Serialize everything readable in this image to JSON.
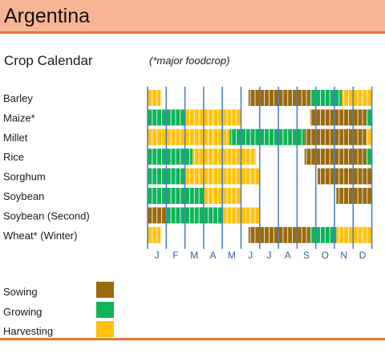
{
  "header": {
    "title": "Argentina"
  },
  "subtitle": "Crop Calendar",
  "note": "(*major foodcrop)",
  "colors": {
    "sowing": "#9a6a0f",
    "growing": "#0fb35a",
    "harvesting": "#ffc20e",
    "gridline": "#4f81bd",
    "accent": "#e8753a",
    "header_bg": "#f7b595"
  },
  "legend": [
    {
      "label": "Sowing",
      "stage": "sowing"
    },
    {
      "label": "Growing",
      "stage": "growing"
    },
    {
      "label": "Harvesting",
      "stage": "harvesting"
    }
  ],
  "chart_data": {
    "type": "table",
    "title": "Crop Calendar",
    "months": [
      "J",
      "F",
      "M",
      "A",
      "M",
      "J",
      "J",
      "A",
      "S",
      "O",
      "N",
      "D"
    ],
    "unit": "month (0 = start of January, 12 = end of December)",
    "crops": [
      {
        "name": "Barley",
        "segments": [
          {
            "stage": "harvesting",
            "start": 0.0,
            "end": 0.7
          },
          {
            "stage": "sowing",
            "start": 5.4,
            "end": 8.7
          },
          {
            "stage": "growing",
            "start": 8.7,
            "end": 10.4
          },
          {
            "stage": "harvesting",
            "start": 10.4,
            "end": 12.0
          }
        ]
      },
      {
        "name": "Maize*",
        "segments": [
          {
            "stage": "growing",
            "start": 0.0,
            "end": 2.0
          },
          {
            "stage": "harvesting",
            "start": 2.0,
            "end": 5.0
          },
          {
            "stage": "sowing",
            "start": 8.7,
            "end": 11.7
          },
          {
            "stage": "growing",
            "start": 11.7,
            "end": 12.0
          }
        ]
      },
      {
        "name": "Millet",
        "segments": [
          {
            "stage": "harvesting",
            "start": 0.0,
            "end": 4.4
          },
          {
            "stage": "growing",
            "start": 4.4,
            "end": 8.4
          },
          {
            "stage": "sowing",
            "start": 8.4,
            "end": 11.7
          },
          {
            "stage": "harvesting",
            "start": 11.7,
            "end": 12.0
          }
        ]
      },
      {
        "name": "Rice",
        "segments": [
          {
            "stage": "growing",
            "start": 0.0,
            "end": 2.4
          },
          {
            "stage": "harvesting",
            "start": 2.4,
            "end": 5.8
          },
          {
            "stage": "sowing",
            "start": 8.4,
            "end": 11.7
          },
          {
            "stage": "growing",
            "start": 11.7,
            "end": 12.0
          }
        ]
      },
      {
        "name": "Sorghum",
        "segments": [
          {
            "stage": "growing",
            "start": 0.0,
            "end": 2.0
          },
          {
            "stage": "harvesting",
            "start": 2.0,
            "end": 6.0
          },
          {
            "stage": "sowing",
            "start": 9.1,
            "end": 12.0
          }
        ]
      },
      {
        "name": "Soybean",
        "segments": [
          {
            "stage": "growing",
            "start": 0.0,
            "end": 3.0
          },
          {
            "stage": "harvesting",
            "start": 3.0,
            "end": 5.0
          },
          {
            "stage": "sowing",
            "start": 10.1,
            "end": 12.0
          }
        ]
      },
      {
        "name": "Soybean (Second)",
        "segments": [
          {
            "stage": "sowing",
            "start": 0.0,
            "end": 1.0
          },
          {
            "stage": "growing",
            "start": 1.0,
            "end": 4.0
          },
          {
            "stage": "harvesting",
            "start": 4.0,
            "end": 6.0
          }
        ]
      },
      {
        "name": "Wheat* (Winter)",
        "segments": [
          {
            "stage": "harvesting",
            "start": 0.0,
            "end": 0.7
          },
          {
            "stage": "sowing",
            "start": 5.4,
            "end": 8.7
          },
          {
            "stage": "growing",
            "start": 8.7,
            "end": 10.1
          },
          {
            "stage": "harvesting",
            "start": 10.1,
            "end": 12.0
          }
        ]
      }
    ]
  }
}
